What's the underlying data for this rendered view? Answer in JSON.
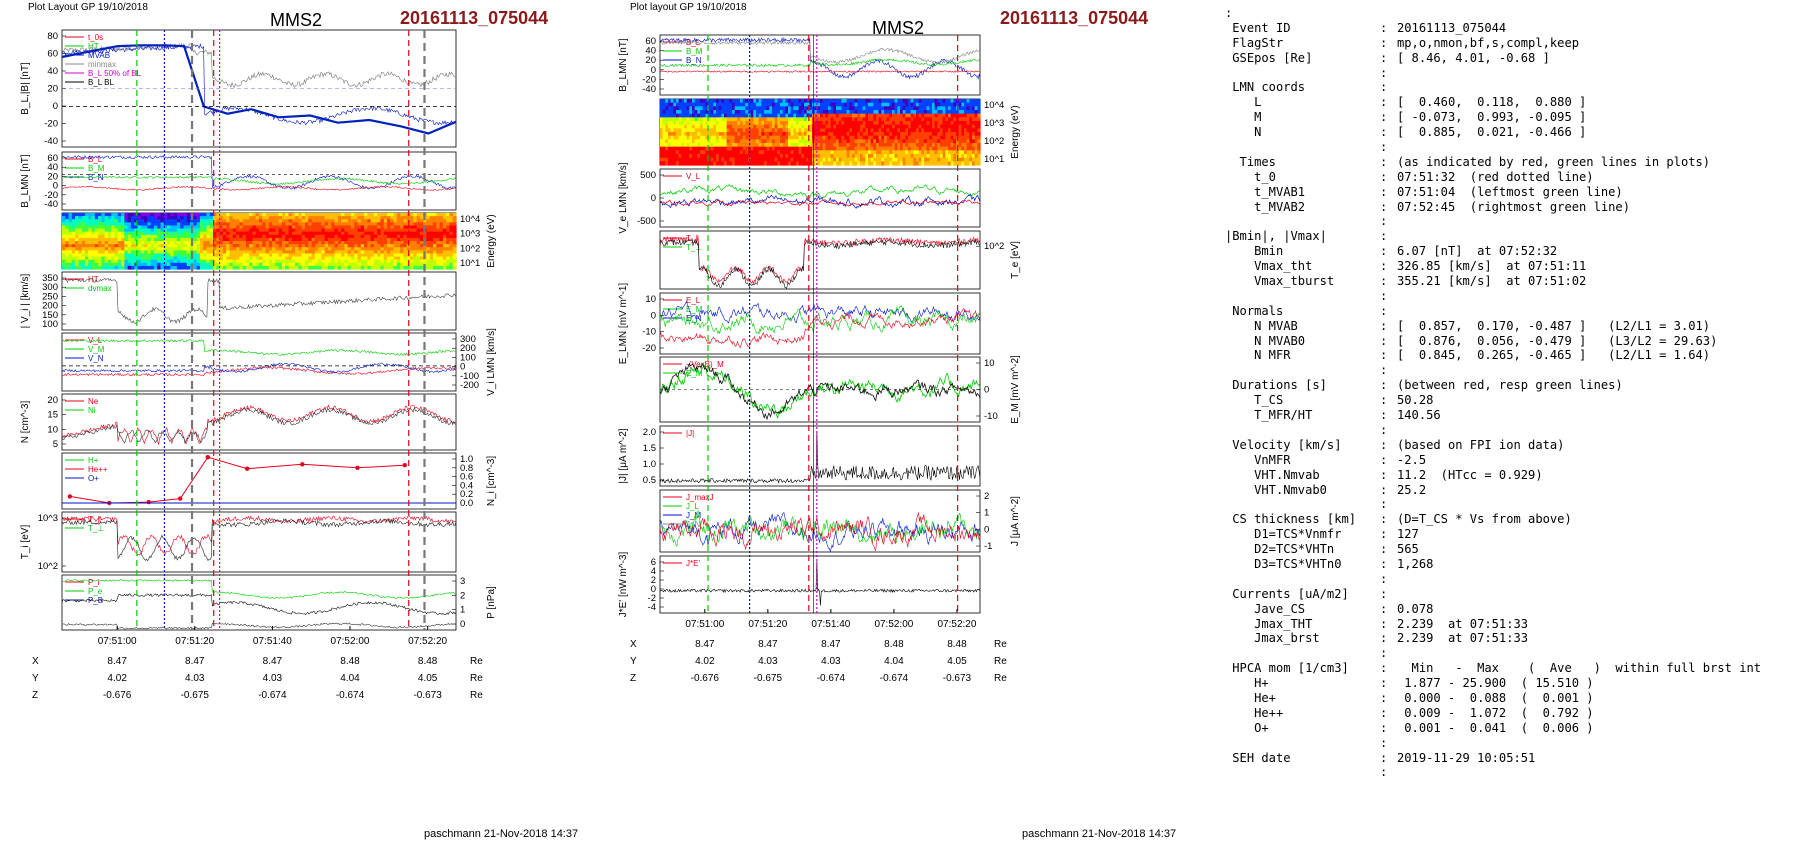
{
  "panel_left": {
    "header_left": "Plot Layout GP 19/10/2018",
    "spacecraft": "MMS2",
    "event": "20161113_075044",
    "footer": "paschmann 21-Nov-2018 14:37"
  },
  "panel_mid": {
    "header_left": "Plot layout GP 19/10/2018",
    "spacecraft": "MMS2",
    "event": "20161113_075044",
    "footer": "paschmann 21-Nov-2018 14:37"
  },
  "colors": {
    "red": "#e8001c",
    "green": "#00cc00",
    "blue": "#0015cc",
    "gray": "#888888",
    "magenta": "#cc00cc",
    "black": "#000000",
    "thickblue": "#0022bb"
  },
  "chart_data": [
    {
      "type": "line",
      "name": "left_stack",
      "x_ticks": [
        "07:51:00",
        "07:51:20",
        "07:51:40",
        "07:52:00",
        "07:52:20"
      ],
      "ephemeris": {
        "rows": [
          {
            "label": "X",
            "values": [
              "8.47",
              "8.47",
              "8.47",
              "8.48",
              "8.48"
            ],
            "unit": "Re"
          },
          {
            "label": "Y",
            "values": [
              "4.02",
              "4.03",
              "4.03",
              "4.04",
              "4.05"
            ],
            "unit": "Re"
          },
          {
            "label": "Z",
            "values": [
              "-0.676",
              "-0.675",
              "-0.674",
              "-0.674",
              "-0.673"
            ],
            "unit": "Re"
          }
        ]
      },
      "panels": [
        {
          "ylabel": "B_L,|B| [nT]",
          "ticks": [
            "80",
            "60",
            "40",
            "20",
            "0",
            "-20",
            "-40"
          ],
          "legend": [
            "t_0s",
            "HT",
            "MVAB",
            "minmax",
            "B_L 50% of BL",
            "B_L BL"
          ]
        },
        {
          "ylabel": "B_LMN [nT]",
          "ticks": [
            "60",
            "40",
            "20",
            "0",
            "-20",
            "-40"
          ],
          "legend": [
            "B_L",
            "B_M",
            "B_N"
          ]
        },
        {
          "ylabel": "Energy (eV)",
          "ticks": [
            "10^4",
            "10^3",
            "10^2",
            "10^1"
          ],
          "legend": []
        },
        {
          "ylabel": "| V_i | [km/s]",
          "ticks": [
            "350",
            "300",
            "250",
            "200",
            "150",
            "100"
          ],
          "legend": [
            "HT",
            "dvmax"
          ]
        },
        {
          "ylabel": "V_i LMN [km/s]",
          "ticks": [
            "300",
            "200",
            "100",
            "0",
            "-100",
            "-200"
          ],
          "legend": [
            "V_L",
            "V_M",
            "V_N"
          ]
        },
        {
          "ylabel": "N [cm^-3]",
          "ticks": [
            "20",
            "15",
            "10",
            "5"
          ],
          "legend": [
            "Ne",
            "Ni"
          ]
        },
        {
          "ylabel": "N_i [cm^-3]",
          "ticks": [
            "1.0",
            "0.8",
            "0.6",
            "0.4",
            "0.2",
            "0.0"
          ],
          "legend": [
            "H+",
            "He++",
            "O+"
          ]
        },
        {
          "ylabel": "T_i [eV]",
          "ticks": [
            "10^3",
            "10^2"
          ],
          "legend": [
            "T_∥",
            "T_⊥"
          ]
        },
        {
          "ylabel": "P [nPa]",
          "ticks": [
            "3",
            "2",
            "1",
            "0"
          ],
          "legend": [
            "P_i",
            "P_e",
            "P_B"
          ]
        }
      ],
      "series_samples": {
        "BL_thick": [
          [
            0,
            55
          ],
          [
            8,
            62
          ],
          [
            14,
            67
          ],
          [
            20,
            68
          ],
          [
            26,
            68
          ],
          [
            31,
            67
          ],
          [
            36,
            0
          ],
          [
            42,
            -8
          ],
          [
            48,
            -3
          ],
          [
            55,
            -12
          ],
          [
            63,
            -10
          ],
          [
            70,
            -18
          ],
          [
            78,
            -15
          ],
          [
            86,
            -22
          ],
          [
            93,
            -30
          ],
          [
            100,
            -17
          ]
        ]
      }
    },
    {
      "type": "line",
      "name": "mid_stack",
      "x_ticks": [
        "07:51:00",
        "07:51:20",
        "07:51:40",
        "07:52:00",
        "07:52:20"
      ],
      "ephemeris": {
        "rows": [
          {
            "label": "X",
            "values": [
              "8.47",
              "8.47",
              "8.47",
              "8.48",
              "8.48"
            ],
            "unit": "Re"
          },
          {
            "label": "Y",
            "values": [
              "4.02",
              "4.03",
              "4.03",
              "4.04",
              "4.05"
            ],
            "unit": "Re"
          },
          {
            "label": "Z",
            "values": [
              "-0.676",
              "-0.675",
              "-0.674",
              "-0.674",
              "-0.673"
            ],
            "unit": "Re"
          }
        ]
      },
      "panels": [
        {
          "ylabel": "B_LMN [nT]",
          "ticks": [
            "60",
            "40",
            "20",
            "0",
            "-20",
            "-40"
          ],
          "legend": [
            "B_L",
            "B_M",
            "B_N"
          ]
        },
        {
          "ylabel": "Energy (eV)",
          "ticks": [
            "10^4",
            "10^3",
            "10^2",
            "10^1"
          ],
          "legend": []
        },
        {
          "ylabel": "V_e LMN [km/s]",
          "ticks": [
            "500",
            "0",
            "-500"
          ],
          "legend": [
            "V_L"
          ]
        },
        {
          "ylabel": "T_e [eV]",
          "ticks": [
            "10^2"
          ],
          "legend": [
            "T_∥",
            "T_⊥"
          ]
        },
        {
          "ylabel": "E_LMN [mV m^-1]",
          "ticks": [
            "10",
            "0",
            "-10",
            "-20"
          ],
          "legend": [
            "E_L",
            "E_M",
            "E_N"
          ]
        },
        {
          "ylabel": "E_M [mV m^-2]",
          "ticks": [
            "10",
            "0",
            "-10"
          ],
          "legend": [
            "-(VexB)_M",
            "E_M"
          ]
        },
        {
          "ylabel": "|J| [μA m^-2]",
          "ticks": [
            "2.0",
            "1.5",
            "1.0",
            "0.5"
          ],
          "legend": [
            "|J|"
          ]
        },
        {
          "ylabel": "J [μA m^-2]",
          "ticks": [
            "2",
            "1",
            "0",
            "-1"
          ],
          "legend": [
            "J_maxJ",
            "J_L",
            "J_M",
            "J_N"
          ]
        },
        {
          "ylabel": "J*E' [nW m^-3]",
          "ticks": [
            "6",
            "4",
            "2",
            "0",
            "-2",
            "-4"
          ],
          "legend": [
            "J*E'"
          ]
        }
      ]
    }
  ],
  "info": {
    "lines": [
      {
        "k": ":",
        "s": "",
        "v": ""
      },
      {
        "k": " Event ID",
        "s": ":",
        "v": "20161113_075044"
      },
      {
        "k": " FlagStr",
        "s": ":",
        "v": "mp,o,nmon,bf,s,compl,keep"
      },
      {
        "k": " GSEpos [Re]",
        "s": ":",
        "v": "[ 8.46, 4.01, -0.68 ]"
      },
      {
        "k": "",
        "s": ":",
        "v": ""
      },
      {
        "k": " LMN coords",
        "s": ":",
        "v": ""
      },
      {
        "k": "    L",
        "s": ":",
        "v": "[  0.460,  0.118,  0.880 ]"
      },
      {
        "k": "    M",
        "s": ":",
        "v": "[ -0.073,  0.993, -0.095 ]"
      },
      {
        "k": "    N",
        "s": ":",
        "v": "[  0.885,  0.021, -0.466 ]"
      },
      {
        "k": "",
        "s": ":",
        "v": ""
      },
      {
        "k": "  Times",
        "s": ":",
        "v": "(as indicated by red, green lines in plots)"
      },
      {
        "k": "    t_0",
        "s": ":",
        "v": "07:51:32  (red dotted line)"
      },
      {
        "k": "    t_MVAB1",
        "s": ":",
        "v": "07:51:04  (leftmost green line)"
      },
      {
        "k": "    t_MVAB2",
        "s": ":",
        "v": "07:52:45  (rightmost green line)"
      },
      {
        "k": "",
        "s": ":",
        "v": ""
      },
      {
        "k": "|Bmin|, |Vmax|",
        "s": ":",
        "v": ""
      },
      {
        "k": "    Bmin",
        "s": ":",
        "v": "6.07 [nT]  at 07:52:32"
      },
      {
        "k": "    Vmax_tht",
        "s": ":",
        "v": "326.85 [km/s]  at 07:51:11"
      },
      {
        "k": "    Vmax_tburst",
        "s": ":",
        "v": "355.21 [km/s]  at 07:51:02"
      },
      {
        "k": "",
        "s": ":",
        "v": ""
      },
      {
        "k": " Normals",
        "s": ":",
        "v": ""
      },
      {
        "k": "    N MVAB",
        "s": ":",
        "v": "[  0.857,  0.170, -0.487 ]   (L2/L1 = 3.01)"
      },
      {
        "k": "    N MVAB0",
        "s": ":",
        "v": "[  0.876,  0.056, -0.479 ]   (L3/L2 = 29.63)"
      },
      {
        "k": "    N MFR",
        "s": ":",
        "v": "[  0.845,  0.265, -0.465 ]   (L2/L1 = 1.64)"
      },
      {
        "k": "",
        "s": ":",
        "v": ""
      },
      {
        "k": " Durations [s]",
        "s": ":",
        "v": "(between red, resp green lines)"
      },
      {
        "k": "    T_CS",
        "s": ":",
        "v": "50.28"
      },
      {
        "k": "    T_MFR/HT",
        "s": ":",
        "v": "140.56"
      },
      {
        "k": "",
        "s": ":",
        "v": ""
      },
      {
        "k": " Velocity [km/s]",
        "s": ":",
        "v": "(based on FPI ion data)"
      },
      {
        "k": "    VnMFR",
        "s": ":",
        "v": "-2.5"
      },
      {
        "k": "    VHT.Nmvab",
        "s": ":",
        "v": "11.2  (HTcc = 0.929)"
      },
      {
        "k": "    VHT.Nmvab0",
        "s": ":",
        "v": "25.2"
      },
      {
        "k": "",
        "s": ":",
        "v": ""
      },
      {
        "k": " CS thickness [km]",
        "s": ":",
        "v": "(D=T_CS * Vs from above)"
      },
      {
        "k": "    D1=TCS*Vnmfr",
        "s": ":",
        "v": "127"
      },
      {
        "k": "    D2=TCS*VHTn",
        "s": ":",
        "v": "565"
      },
      {
        "k": "    D3=TCS*VHTn0",
        "s": ":",
        "v": "1,268"
      },
      {
        "k": "",
        "s": ":",
        "v": ""
      },
      {
        "k": " Currents [uA/m2]",
        "s": ":",
        "v": ""
      },
      {
        "k": "    Jave_CS",
        "s": ":",
        "v": "0.078"
      },
      {
        "k": "    Jmax_THT",
        "s": ":",
        "v": "2.239  at 07:51:33"
      },
      {
        "k": "    Jmax_brst",
        "s": ":",
        "v": "2.239  at 07:51:33"
      },
      {
        "k": "",
        "s": ":",
        "v": ""
      },
      {
        "k": " HPCA mom [1/cm3]",
        "s": ":",
        "v": "  Min   -  Max    (  Ave   )  within full brst int"
      },
      {
        "k": "    H+",
        "s": ":",
        "v": " 1.877 - 25.900  ( 15.510 )"
      },
      {
        "k": "    He+",
        "s": ":",
        "v": " 0.000 -  0.088  (  0.001 )"
      },
      {
        "k": "    He++",
        "s": ":",
        "v": " 0.009 -  1.072  (  0.792 )"
      },
      {
        "k": "    O+",
        "s": ":",
        "v": " 0.001 -  0.041  (  0.006 )"
      },
      {
        "k": "",
        "s": ":",
        "v": ""
      },
      {
        "k": " SEH date",
        "s": ":",
        "v": "2019-11-29 10:05:51"
      },
      {
        "k": "",
        "s": ":",
        "v": ""
      }
    ]
  }
}
